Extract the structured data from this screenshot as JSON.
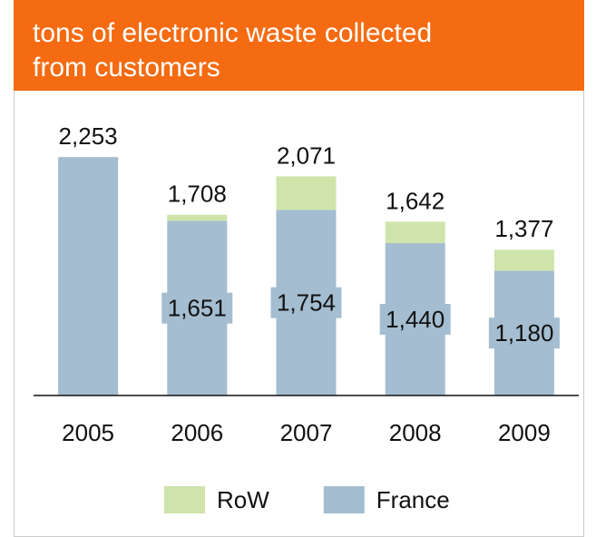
{
  "chart_data": {
    "type": "stacked_bar",
    "title": [
      "tons of electronic waste collected",
      "from customers"
    ],
    "categories": [
      "2005",
      "2006",
      "2007",
      "2008",
      "2009"
    ],
    "series": [
      {
        "name": "France",
        "color": "#a4bdd0",
        "values": [
          2253,
          1651,
          1754,
          1440,
          1180
        ],
        "value_labels": [
          null,
          "1,651",
          "1,754",
          "1,440",
          "1,180"
        ]
      },
      {
        "name": "RoW",
        "color": "#cfe4aa",
        "values": [
          0,
          57,
          317,
          202,
          197
        ]
      }
    ],
    "total_labels": [
      "2,253",
      "1,708",
      "2,071",
      "1,642",
      "1,377"
    ],
    "ylim": [
      0,
      2400
    ],
    "header_color": "#f46b12"
  }
}
